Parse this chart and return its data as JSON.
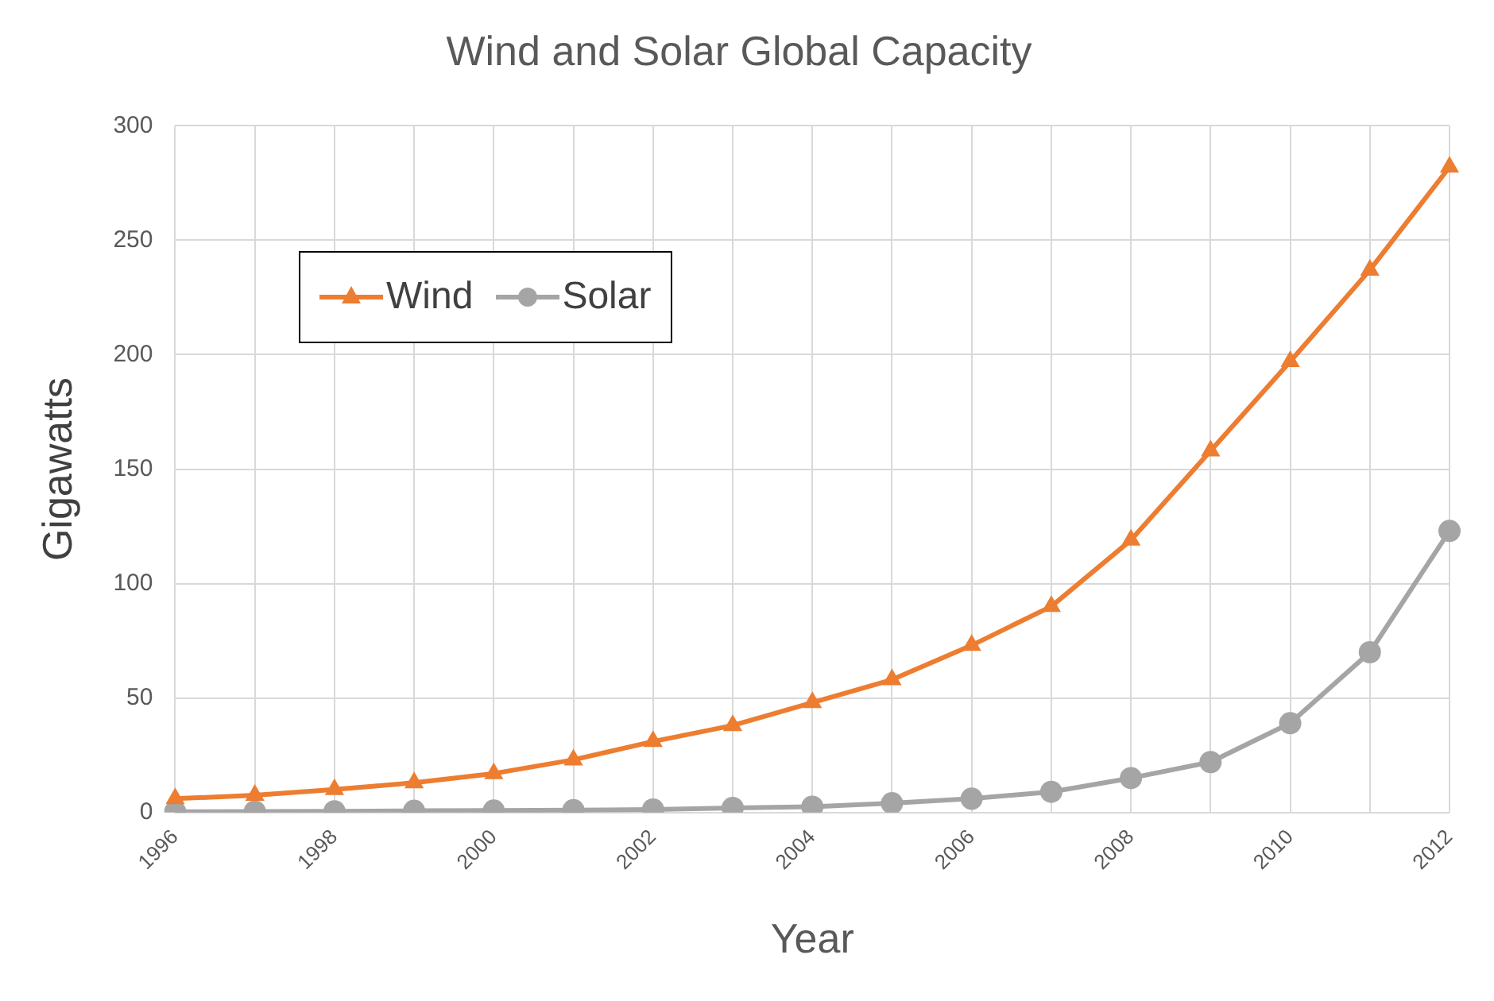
{
  "chart_data": {
    "type": "line",
    "title": "Wind and Solar Global Capacity",
    "xlabel": "Year",
    "ylabel": "Gigawatts",
    "categories": [
      "1996",
      null,
      "1998",
      null,
      "2000",
      null,
      "2002",
      null,
      "2004",
      null,
      "2006",
      null,
      "2008",
      null,
      "2010",
      null,
      "2012"
    ],
    "series": [
      {
        "name": "Wind",
        "color": "#ed7d31",
        "marker": "triangle",
        "values": [
          6,
          7.5,
          10,
          13,
          17,
          23,
          31,
          38,
          48,
          58,
          73,
          90,
          119,
          158,
          197,
          237,
          282
        ]
      },
      {
        "name": "Solar",
        "color": "#a5a5a5",
        "marker": "circle",
        "values": [
          0.3,
          0.4,
          0.5,
          0.7,
          0.8,
          1,
          1.3,
          2,
          2.5,
          4,
          6,
          9,
          15,
          22,
          39,
          70,
          123
        ]
      }
    ],
    "ylim": [
      0,
      300
    ],
    "yticks": [
      0,
      50,
      100,
      150,
      200,
      250,
      300
    ],
    "grid": true,
    "legend": "top left",
    "line_style": "solid"
  }
}
